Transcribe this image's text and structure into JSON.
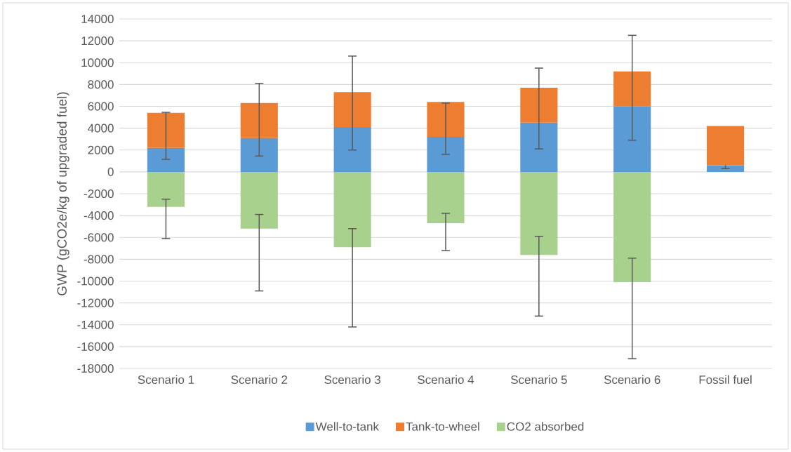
{
  "chart_data": {
    "type": "bar",
    "stacked": true,
    "ylabel": "GWP (gCO2e/kg of upgraded fuel)",
    "categories": [
      "Scenario 1",
      "Scenario 2",
      "Scenario 3",
      "Scenario 4",
      "Scenario 5",
      "Scenario 6",
      "Fossil fuel"
    ],
    "series": [
      {
        "name": "Well-to-tank",
        "color": "#5b9bd5",
        "values": [
          2200,
          3100,
          4100,
          3200,
          4500,
          6000,
          600
        ],
        "errors": [
          null,
          null,
          null,
          null,
          null,
          null,
          [
            300,
            800
          ]
        ]
      },
      {
        "name": "Tank-to-wheel",
        "color": "#ed7d31",
        "values": [
          3200,
          3200,
          3200,
          3200,
          3200,
          3200,
          3600
        ],
        "errors": [
          [
            1150,
            5450
          ],
          [
            1450,
            8100
          ],
          [
            2000,
            10600
          ],
          [
            1600,
            6300
          ],
          [
            2100,
            9500
          ],
          [
            2900,
            12500
          ],
          null
        ]
      },
      {
        "name": "CO2 absorbed",
        "color": "#a9d18e",
        "values": [
          -3200,
          -5200,
          -6900,
          -4700,
          -7600,
          -10100,
          null
        ],
        "errors": [
          [
            -6100,
            -2500
          ],
          [
            -10900,
            -3900
          ],
          [
            -14200,
            -5200
          ],
          [
            -7200,
            -3800
          ],
          [
            -13200,
            -5900
          ],
          [
            -17100,
            -7900
          ],
          null
        ]
      }
    ],
    "ylim": [
      -18000,
      14000
    ],
    "yticks": [
      -18000,
      -16000,
      -14000,
      -12000,
      -10000,
      -8000,
      -6000,
      -4000,
      -2000,
      0,
      2000,
      4000,
      6000,
      8000,
      10000,
      12000,
      14000
    ],
    "grid": "y",
    "legend": "bottom"
  }
}
